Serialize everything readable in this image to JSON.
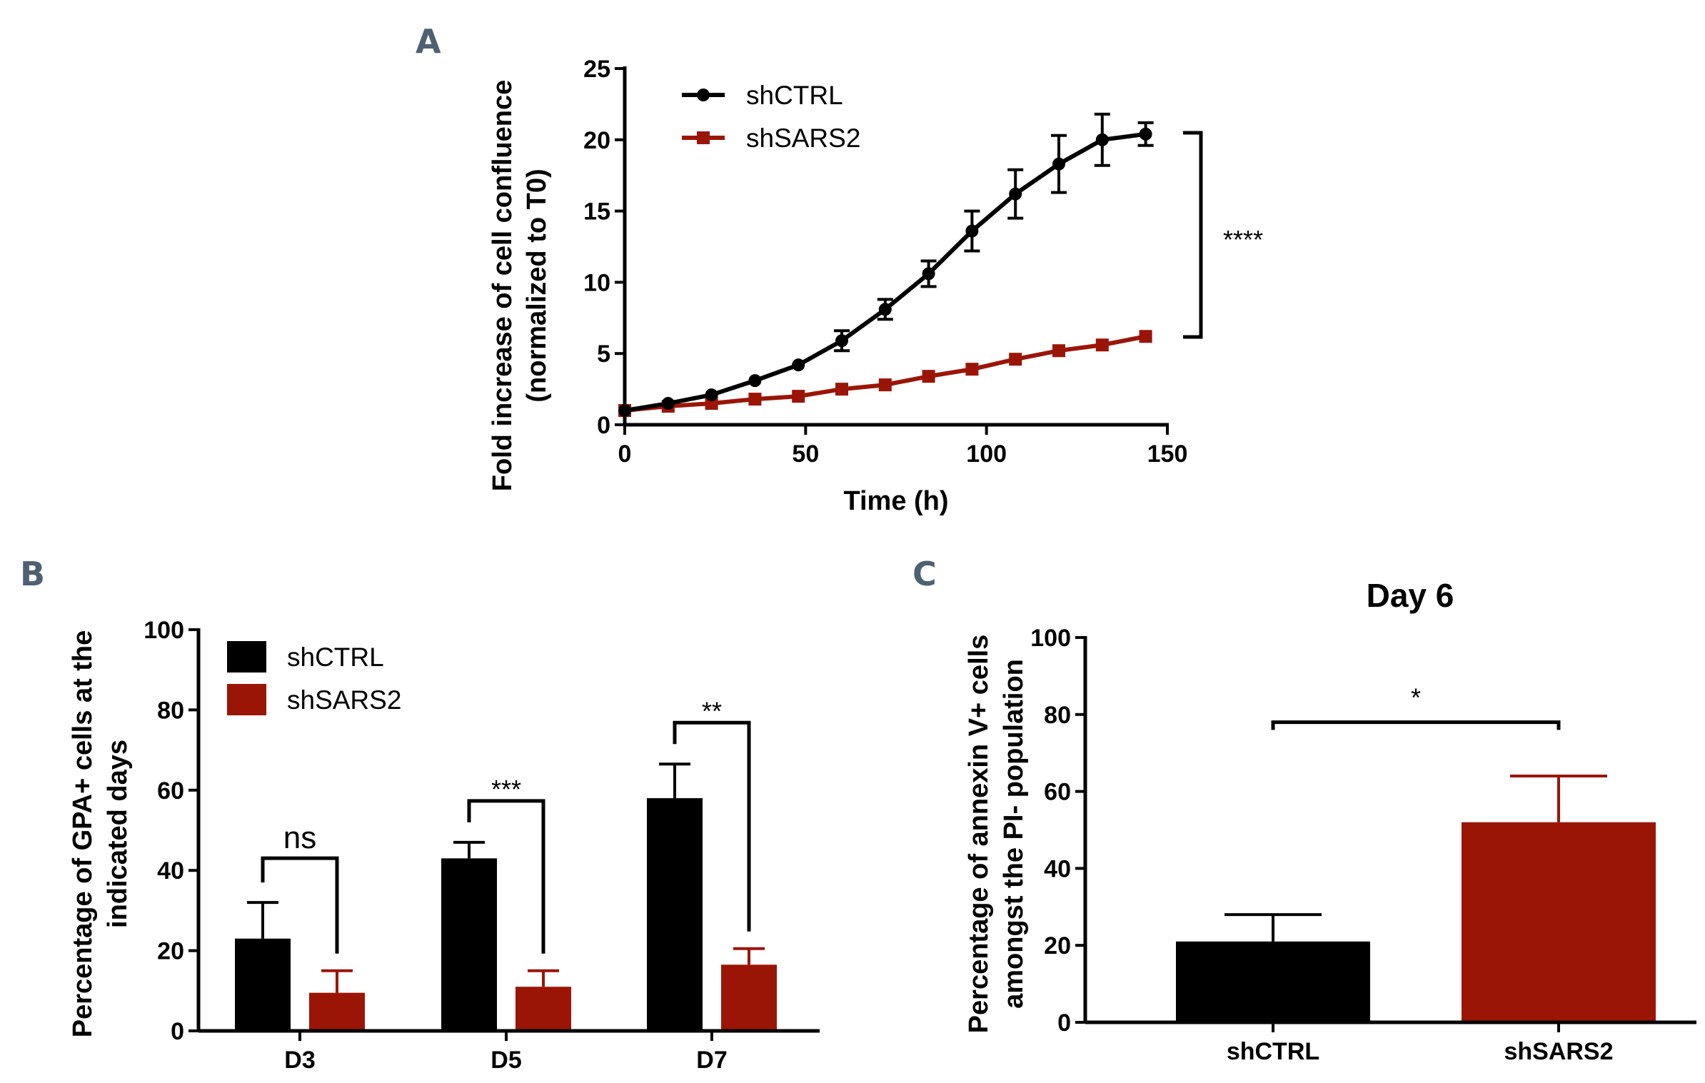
{
  "colors": {
    "ctrl": "#000000",
    "sars2": "#9b1506",
    "panel_letter": "#4e6173"
  },
  "chart_data": [
    {
      "panel": "A",
      "type": "line",
      "title": "",
      "xlabel": "Time (h)",
      "ylabel": [
        "Fold increase of cell confluence",
        "(normalized to T0)"
      ],
      "xlim": [
        0,
        150
      ],
      "ylim": [
        0,
        25
      ],
      "xticks": [
        0,
        50,
        100,
        150
      ],
      "yticks": [
        0,
        5,
        10,
        15,
        20,
        25
      ],
      "legend_position": "top-left",
      "series": [
        {
          "name": "shCTRL",
          "marker": "circle",
          "x": [
            0,
            12,
            24,
            36,
            48,
            60,
            72,
            84,
            96,
            108,
            120,
            132,
            144
          ],
          "values": [
            1.0,
            1.5,
            2.1,
            3.1,
            4.2,
            5.9,
            8.1,
            10.6,
            13.6,
            16.2,
            18.3,
            20.0,
            20.4
          ],
          "errors": [
            0.1,
            0.15,
            0.2,
            0.25,
            0.3,
            0.7,
            0.7,
            0.9,
            1.4,
            1.7,
            2.0,
            1.8,
            0.8
          ]
        },
        {
          "name": "shSARS2",
          "marker": "square",
          "x": [
            0,
            12,
            24,
            36,
            48,
            60,
            72,
            84,
            96,
            108,
            120,
            132,
            144
          ],
          "values": [
            1.0,
            1.3,
            1.5,
            1.8,
            2.0,
            2.5,
            2.8,
            3.4,
            3.9,
            4.6,
            5.2,
            5.6,
            6.2
          ],
          "errors": [
            0.05,
            0.1,
            0.1,
            0.1,
            0.1,
            0.1,
            0.15,
            0.15,
            0.15,
            0.15,
            0.2,
            0.2,
            0.2
          ]
        }
      ],
      "annotations": [
        {
          "label": "****",
          "between": [
            20.4,
            6.2
          ]
        }
      ]
    },
    {
      "panel": "B",
      "type": "bar",
      "title": "",
      "xlabel": "",
      "ylabel": [
        "Percentage of GPA+ cells at the",
        "indicated days"
      ],
      "ylim": [
        0,
        100
      ],
      "yticks": [
        0,
        20,
        40,
        60,
        80,
        100
      ],
      "categories": [
        "D3",
        "D5",
        "D7"
      ],
      "legend_position": "top-left",
      "series": [
        {
          "name": "shCTRL",
          "values": [
            23,
            43,
            58
          ],
          "errors": [
            9,
            4,
            8.5
          ]
        },
        {
          "name": "shSARS2",
          "values": [
            9.5,
            11,
            16.5
          ],
          "errors": [
            5.5,
            4,
            4
          ]
        }
      ],
      "annotations": [
        {
          "label": "ns",
          "category": "D3"
        },
        {
          "label": "***",
          "category": "D5"
        },
        {
          "label": "**",
          "category": "D7"
        }
      ]
    },
    {
      "panel": "C",
      "type": "bar",
      "title": "Day 6",
      "xlabel": "",
      "ylabel": [
        "Percentage of annexin V+ cells",
        "amongst the PI- population"
      ],
      "ylim": [
        0,
        100
      ],
      "yticks": [
        0,
        20,
        40,
        60,
        80,
        100
      ],
      "categories": [
        "shCTRL",
        "shSARS2"
      ],
      "series": [
        {
          "name": "Day 6",
          "values": [
            21,
            52
          ],
          "errors": [
            7,
            12
          ]
        }
      ],
      "annotations": [
        {
          "label": "*",
          "between": [
            "shCTRL",
            "shSARS2"
          ]
        }
      ]
    }
  ]
}
